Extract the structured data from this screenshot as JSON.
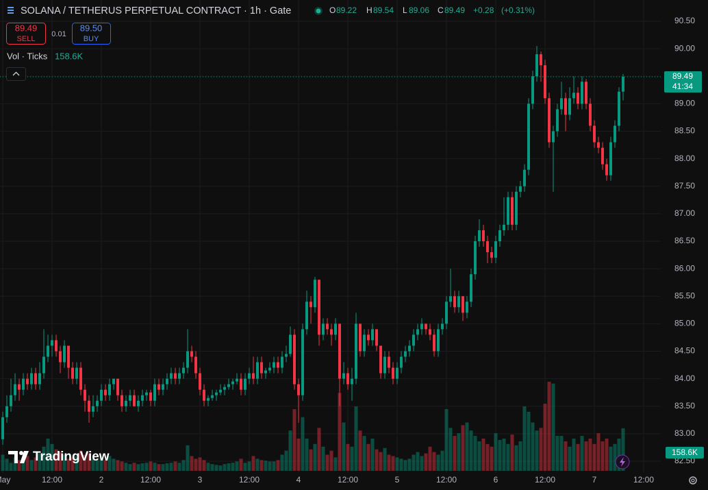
{
  "chart_data": {
    "type": "candlestick",
    "title": "SOLANA / TETHERUS PERPETUAL CONTRACT · 1h · Gate",
    "legend": {
      "o_label": "O",
      "h_label": "H",
      "l_label": "L",
      "c_label": "C",
      "change": "+0.28",
      "change_pct": "(+0.31%)"
    },
    "trade": {
      "sell_price": 89.49,
      "sell_label": "SELL",
      "spread": 0.01,
      "buy_price": {
        "value": 89.5,
        "label": "89.50"
      },
      "buy_label": "BUY"
    },
    "volume_legend": {
      "name": "Vol · Ticks",
      "label": "158.6K"
    },
    "price_timer": "41:34",
    "watermark": "TradingView",
    "up_color": "#089981",
    "down_color": "#f23645",
    "grid": true,
    "categories": [
      "May",
      null,
      null,
      null,
      null,
      null,
      null,
      null,
      null,
      null,
      null,
      null,
      "12:00",
      null,
      null,
      null,
      null,
      null,
      null,
      null,
      null,
      null,
      null,
      null,
      "2",
      null,
      null,
      null,
      null,
      null,
      null,
      null,
      null,
      null,
      null,
      null,
      "12:00",
      null,
      null,
      null,
      null,
      null,
      null,
      null,
      null,
      null,
      null,
      null,
      "3",
      null,
      null,
      null,
      null,
      null,
      null,
      null,
      null,
      null,
      null,
      null,
      "12:00",
      null,
      null,
      null,
      null,
      null,
      null,
      null,
      null,
      null,
      null,
      null,
      "4",
      null,
      null,
      null,
      null,
      null,
      null,
      null,
      null,
      null,
      null,
      null,
      "12:00",
      null,
      null,
      null,
      null,
      null,
      null,
      null,
      null,
      null,
      null,
      null,
      "5",
      null,
      null,
      null,
      null,
      null,
      null,
      null,
      null,
      null,
      null,
      null,
      "12:00",
      null,
      null,
      null,
      null,
      null,
      null,
      null,
      null,
      null,
      null,
      null,
      "6",
      null,
      null,
      null,
      null,
      null,
      null,
      null,
      null,
      null,
      null,
      null,
      "12:00",
      null,
      null,
      null,
      null,
      null,
      null,
      null,
      null,
      null,
      null,
      null,
      "7",
      null,
      null,
      null,
      null,
      null,
      null,
      null,
      null,
      null,
      null,
      null,
      "12:00"
    ],
    "open": [
      82.9,
      83.3,
      83.5,
      83.7,
      83.9,
      83.8,
      84.0,
      83.9,
      84.1,
      83.9,
      84.1,
      84.4,
      84.6,
      84.7,
      84.5,
      84.3,
      84.6,
      84.2,
      84.0,
      84.2,
      83.8,
      83.6,
      83.4,
      83.5,
      83.6,
      83.8,
      83.7,
      83.9,
      84.0,
      83.7,
      83.5,
      83.6,
      83.7,
      83.5,
      83.6,
      83.7,
      83.75,
      83.6,
      83.9,
      83.8,
      83.9,
      84.0,
      84.1,
      84.0,
      84.1,
      84.2,
      84.5,
      84.4,
      84.1,
      83.8,
      83.6,
      83.65,
      83.7,
      83.75,
      83.8,
      83.85,
      83.9,
      83.95,
      84.0,
      83.8,
      84.0,
      84.1,
      84.0,
      84.3,
      84.1,
      84.15,
      84.2,
      84.3,
      84.2,
      84.4,
      84.45,
      84.8,
      83.9,
      83.7,
      84.9,
      85.4,
      85.3,
      85.8,
      84.8,
      85.0,
      84.9,
      84.8,
      85.0,
      84.0,
      84.1,
      83.9,
      84.0,
      85.0,
      84.5,
      84.8,
      84.7,
      84.9,
      84.6,
      84.1,
      84.4,
      84.2,
      84.0,
      84.2,
      84.4,
      84.5,
      84.6,
      84.8,
      84.9,
      85.0,
      84.9,
      84.8,
      84.5,
      84.9,
      85.0,
      85.4,
      85.5,
      85.3,
      85.5,
      85.2,
      85.4,
      85.9,
      86.5,
      86.7,
      86.5,
      86.3,
      86.2,
      86.5,
      86.7,
      86.8,
      87.3,
      86.8,
      87.4,
      87.5,
      87.8,
      89.0,
      89.5,
      89.9,
      89.7,
      89.1,
      88.3,
      88.5,
      88.9,
      89.1,
      88.8,
      89.1,
      89.2,
      89.0,
      89.4,
      89.0,
      88.6,
      88.3,
      88.2,
      87.9,
      87.7,
      88.3,
      88.6,
      89.22,
      null,
      null,
      null,
      null,
      null
    ],
    "high": [
      83.4,
      83.7,
      84.0,
      84.1,
      84.0,
      84.1,
      84.1,
      84.2,
      84.2,
      84.3,
      84.9,
      84.8,
      84.8,
      84.8,
      84.6,
      84.7,
      84.6,
      84.3,
      84.3,
      84.3,
      83.9,
      83.7,
      83.7,
      83.7,
      83.9,
      83.9,
      84.0,
      84.0,
      84.0,
      83.8,
      83.7,
      83.8,
      83.8,
      83.7,
      83.8,
      83.8,
      83.8,
      84.0,
      84.0,
      84.0,
      84.1,
      84.2,
      84.2,
      84.2,
      84.3,
      84.9,
      84.6,
      84.5,
      84.2,
      83.9,
      83.7,
      83.8,
      83.8,
      83.9,
      83.9,
      84.0,
      84.0,
      84.1,
      84.1,
      84.1,
      84.2,
      84.4,
      84.4,
      84.4,
      84.2,
      84.3,
      84.4,
      84.4,
      84.5,
      84.6,
      84.95,
      84.9,
      84.0,
      85.0,
      85.6,
      85.5,
      85.85,
      85.8,
      85.1,
      85.1,
      85.0,
      85.1,
      85.0,
      84.3,
      84.2,
      84.2,
      85.2,
      85.0,
      84.9,
      84.9,
      85.0,
      84.9,
      84.6,
      84.5,
      84.5,
      84.3,
      84.3,
      84.5,
      84.6,
      84.7,
      84.9,
      85.0,
      85.1,
      85.0,
      85.0,
      84.9,
      85.0,
      85.1,
      85.5,
      86.0,
      85.6,
      85.6,
      85.5,
      85.5,
      86.0,
      86.6,
      86.9,
      86.8,
      86.6,
      86.4,
      86.6,
      86.8,
      87.3,
      87.4,
      87.4,
      87.5,
      87.6,
      87.9,
      89.1,
      89.6,
      90.05,
      89.95,
      89.8,
      89.2,
      88.6,
      89.0,
      89.4,
      89.2,
      89.3,
      89.5,
      89.3,
      89.5,
      89.45,
      89.1,
      88.7,
      88.4,
      88.3,
      88.0,
      88.4,
      88.7,
      89.3,
      89.54,
      null,
      null,
      null,
      null,
      null
    ],
    "low": [
      82.8,
      83.2,
      83.4,
      83.6,
      83.6,
      83.7,
      83.8,
      83.8,
      83.8,
      83.8,
      84.0,
      84.3,
      84.4,
      84.4,
      84.1,
      84.2,
      84.0,
      83.9,
      83.9,
      83.7,
      83.4,
      83.2,
      83.3,
      83.4,
      83.5,
      83.6,
      83.6,
      83.8,
      83.6,
      83.4,
      83.4,
      83.5,
      83.5,
      83.4,
      83.5,
      83.6,
      83.5,
      83.5,
      83.7,
      83.7,
      83.8,
      83.9,
      83.9,
      83.9,
      84.0,
      84.1,
      84.3,
      84.0,
      83.7,
      83.5,
      83.5,
      83.6,
      83.6,
      83.7,
      83.7,
      83.8,
      83.8,
      83.9,
      83.7,
      83.7,
      83.9,
      83.9,
      83.9,
      84.0,
      84.0,
      84.1,
      84.1,
      84.1,
      84.1,
      84.3,
      84.4,
      83.8,
      83.2,
      83.6,
      84.8,
      85.0,
      85.2,
      84.6,
      84.7,
      84.8,
      84.6,
      84.7,
      83.5,
      83.9,
      83.8,
      83.6,
      83.9,
      84.4,
      84.4,
      84.6,
      84.6,
      84.5,
      84.0,
      84.0,
      84.1,
      83.9,
      83.9,
      84.1,
      84.3,
      84.4,
      84.5,
      84.7,
      84.8,
      84.8,
      84.7,
      84.4,
      84.4,
      84.8,
      84.9,
      85.3,
      85.2,
      85.2,
      85.05,
      85.1,
      85.3,
      85.8,
      86.4,
      86.4,
      86.1,
      86.1,
      86.1,
      86.4,
      86.6,
      86.7,
      86.7,
      86.7,
      87.3,
      87.4,
      87.7,
      88.9,
      89.4,
      89.4,
      89.0,
      88.2,
      87.4,
      88.4,
      88.8,
      88.5,
      88.7,
      89.0,
      88.9,
      88.9,
      88.9,
      88.5,
      88.2,
      88.1,
      87.8,
      87.6,
      87.6,
      88.2,
      88.5,
      89.06,
      null,
      null,
      null,
      null,
      null
    ],
    "close": [
      83.3,
      83.5,
      83.7,
      83.9,
      83.8,
      84.0,
      83.9,
      84.1,
      83.9,
      84.1,
      84.4,
      84.6,
      84.7,
      84.5,
      84.3,
      84.6,
      84.2,
      84.0,
      84.2,
      83.8,
      83.6,
      83.4,
      83.5,
      83.6,
      83.8,
      83.7,
      83.9,
      84.0,
      83.7,
      83.5,
      83.6,
      83.7,
      83.5,
      83.6,
      83.7,
      83.75,
      83.6,
      83.9,
      83.8,
      83.9,
      84.0,
      84.1,
      84.0,
      84.1,
      84.2,
      84.5,
      84.4,
      84.1,
      83.8,
      83.6,
      83.65,
      83.7,
      83.75,
      83.8,
      83.85,
      83.9,
      83.95,
      84.0,
      83.8,
      84.0,
      84.1,
      84.0,
      84.3,
      84.1,
      84.15,
      84.2,
      84.3,
      84.2,
      84.4,
      84.45,
      84.8,
      83.9,
      83.7,
      84.9,
      85.4,
      85.3,
      85.8,
      84.8,
      85.0,
      84.9,
      84.8,
      85.0,
      84.0,
      84.1,
      83.9,
      84.0,
      85.0,
      84.5,
      84.8,
      84.7,
      84.9,
      84.6,
      84.1,
      84.4,
      84.2,
      84.0,
      84.2,
      84.4,
      84.5,
      84.6,
      84.8,
      84.9,
      85.0,
      84.9,
      84.8,
      84.5,
      84.9,
      85.0,
      85.4,
      85.5,
      85.3,
      85.5,
      85.2,
      85.4,
      85.9,
      86.5,
      86.7,
      86.5,
      86.3,
      86.2,
      86.5,
      86.7,
      86.8,
      87.3,
      86.8,
      87.4,
      87.5,
      87.8,
      89.0,
      89.5,
      89.9,
      89.7,
      89.1,
      88.3,
      88.5,
      88.9,
      89.1,
      88.8,
      89.1,
      89.2,
      89.0,
      89.4,
      89.0,
      88.6,
      88.3,
      88.2,
      87.9,
      87.7,
      88.3,
      88.6,
      89.22,
      89.49,
      null,
      null,
      null,
      null,
      null
    ],
    "volume": [
      60000,
      45000,
      30000,
      50000,
      40000,
      35000,
      55000,
      40000,
      50000,
      65000,
      90000,
      120000,
      100000,
      80000,
      70000,
      60000,
      45000,
      50000,
      55000,
      75000,
      60000,
      65000,
      45000,
      40000,
      50000,
      40000,
      55000,
      45000,
      40000,
      35000,
      30000,
      25000,
      30000,
      25000,
      28000,
      30000,
      35000,
      30000,
      25000,
      25000,
      28000,
      30000,
      35000,
      30000,
      40000,
      95000,
      55000,
      45000,
      50000,
      40000,
      30000,
      25000,
      22000,
      20000,
      25000,
      28000,
      30000,
      35000,
      45000,
      30000,
      35000,
      55000,
      45000,
      40000,
      38000,
      35000,
      35000,
      40000,
      60000,
      75000,
      150000,
      230000,
      120000,
      200000,
      120000,
      80000,
      100000,
      160000,
      90000,
      60000,
      75000,
      50000,
      290000,
      180000,
      100000,
      90000,
      240000,
      150000,
      130000,
      100000,
      120000,
      80000,
      70000,
      85000,
      60000,
      55000,
      50000,
      45000,
      40000,
      45000,
      60000,
      70000,
      55000,
      65000,
      90000,
      70000,
      60000,
      75000,
      230000,
      160000,
      130000,
      140000,
      170000,
      180000,
      150000,
      130000,
      110000,
      120000,
      100000,
      90000,
      140000,
      115000,
      120000,
      100000,
      135000,
      95000,
      110000,
      240000,
      220000,
      180000,
      150000,
      160000,
      250000,
      332000,
      325000,
      130000,
      130000,
      110000,
      90000,
      120000,
      100000,
      130000,
      110000,
      120000,
      100000,
      140000,
      110000,
      120000,
      90000,
      100000,
      120000,
      158600,
      null,
      null,
      null,
      null,
      null
    ],
    "ylim": [
      82.5,
      90.5
    ],
    "yticks": [
      {
        "value": 82.5,
        "label": "82.50"
      },
      {
        "value": 83,
        "label": "83.00"
      },
      {
        "value": 83.5,
        "label": "83.50"
      },
      {
        "value": 84,
        "label": "84.00"
      },
      {
        "value": 84.5,
        "label": "84.50"
      },
      {
        "value": 85,
        "label": "85.00"
      },
      {
        "value": 85.5,
        "label": "85.50"
      },
      {
        "value": 86,
        "label": "86.00"
      },
      {
        "value": 86.5,
        "label": "86.50"
      },
      {
        "value": 87,
        "label": "87.00"
      },
      {
        "value": 87.5,
        "label": "87.50"
      },
      {
        "value": 88,
        "label": "88.00"
      },
      {
        "value": 88.5,
        "label": "88.50"
      },
      {
        "value": 89,
        "label": "89.00"
      },
      {
        "value": 89.5,
        "label": "89.50"
      },
      {
        "value": 90,
        "label": "90.00"
      },
      {
        "value": 90.5,
        "label": "90.50"
      }
    ]
  }
}
